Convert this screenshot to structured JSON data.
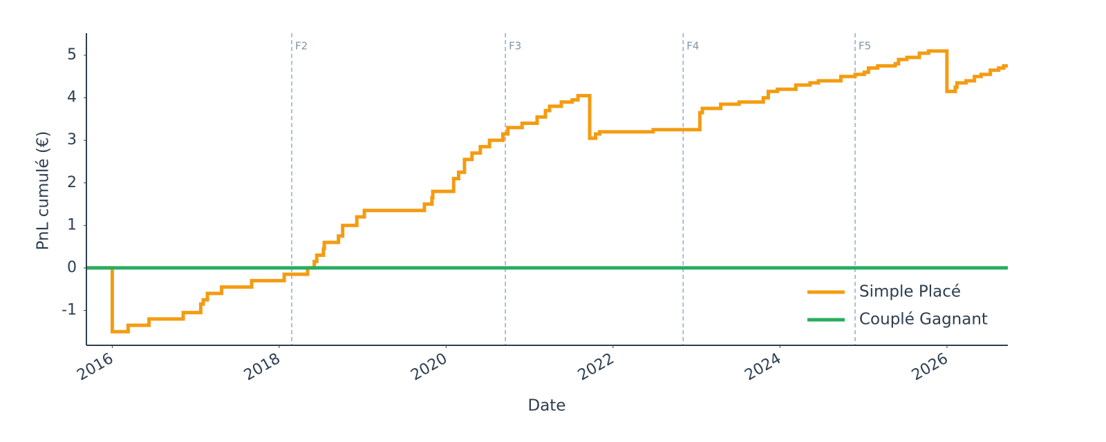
{
  "chart_data": {
    "type": "line",
    "drawstyle": "steps-post",
    "xlabel": "Date",
    "ylabel": "PnL cumulé (€)",
    "xlim": [
      2015.69,
      2026.73
    ],
    "ylim": [
      -1.82,
      5.52
    ],
    "xticks": [
      2016,
      2018,
      2020,
      2022,
      2024,
      2026
    ],
    "yticks": [
      -1,
      0,
      1,
      2,
      3,
      4,
      5
    ],
    "legend": "lower right",
    "vlines": [
      {
        "x": 2018.15,
        "label": "F2"
      },
      {
        "x": 2020.71,
        "label": "F3"
      },
      {
        "x": 2022.84,
        "label": "F4"
      },
      {
        "x": 2024.9,
        "label": "F5"
      }
    ],
    "vline_color": "#9aafc4",
    "series": [
      {
        "name": "Simple Placé",
        "color": "#f39c12",
        "x": [
          2015.69,
          2016.0,
          2016.19,
          2016.44,
          2016.85,
          2017.06,
          2017.09,
          2017.14,
          2017.31,
          2017.67,
          2018.06,
          2018.34,
          2018.42,
          2018.45,
          2018.53,
          2018.54,
          2018.71,
          2018.76,
          2018.93,
          2019.02,
          2019.74,
          2019.83,
          2019.84,
          2020.09,
          2020.15,
          2020.22,
          2020.31,
          2020.41,
          2020.52,
          2020.68,
          2020.74,
          2020.91,
          2021.09,
          2021.19,
          2021.24,
          2021.38,
          2021.51,
          2021.58,
          2021.72,
          2021.79,
          2021.84,
          2022.48,
          2023.04,
          2023.07,
          2023.29,
          2023.51,
          2023.8,
          2023.86,
          2023.97,
          2024.19,
          2024.36,
          2024.46,
          2024.73,
          2024.9,
          2025.01,
          2025.06,
          2025.17,
          2025.38,
          2025.42,
          2025.52,
          2025.67,
          2025.78,
          2026.0,
          2026.1,
          2026.12,
          2026.23,
          2026.33,
          2026.41,
          2026.52,
          2026.62,
          2026.68,
          2026.73
        ],
        "values": [
          0,
          -1.5,
          -1.35,
          -1.2,
          -1.05,
          -0.85,
          -0.75,
          -0.6,
          -0.45,
          -0.3,
          -0.15,
          0.0,
          0.15,
          0.3,
          0.45,
          0.6,
          0.75,
          1.0,
          1.2,
          1.35,
          1.5,
          1.65,
          1.8,
          2.1,
          2.25,
          2.55,
          2.7,
          2.85,
          3.0,
          3.15,
          3.3,
          3.4,
          3.55,
          3.7,
          3.8,
          3.9,
          3.95,
          4.05,
          3.05,
          3.15,
          3.2,
          3.25,
          3.65,
          3.75,
          3.85,
          3.9,
          4.0,
          4.15,
          4.2,
          4.3,
          4.35,
          4.4,
          4.5,
          4.55,
          4.6,
          4.7,
          4.75,
          4.8,
          4.9,
          4.95,
          5.05,
          5.1,
          4.15,
          4.25,
          4.35,
          4.4,
          4.5,
          4.55,
          4.65,
          4.7,
          4.75,
          4.75
        ]
      },
      {
        "name": "Couplé Gagnant",
        "color": "#27ae60",
        "x": [
          2015.69,
          2026.73
        ],
        "values": [
          0,
          0
        ]
      }
    ]
  }
}
